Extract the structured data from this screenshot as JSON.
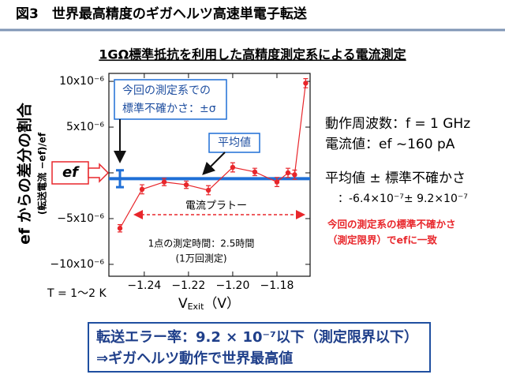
{
  "slide": {
    "header": "図3　世界最高精度のギガヘルツ高速単電子転送",
    "info_frequency": "動作周波数：f = 1 GHz",
    "info_current": "電流値：ef ~160 pA",
    "stats_heading": "平均値 ± 標準不確かさ",
    "note_line1": "今回の測定系の標準不確かさ",
    "note_line2": "（測定限界）でefに一致",
    "conclusion_line1": "転送エラー率：9.2 × 10⁻⁷以下（測定限界以下）",
    "conclusion_line2": "⇒ギガヘルツ動作で世界最高値"
  },
  "chart_data": {
    "type": "line",
    "title": "1GΩ標準抵抗を利用した高精度測定系による電流測定",
    "y_label": "ef からの差分の割合",
    "y_label_sub": "(転送電流 −ef)/ef",
    "x_label": "V",
    "x_label_subscript": "Exit",
    "x_label_unit": "（V）",
    "x": [
      -1.251,
      -1.241,
      -1.231,
      -1.221,
      -1.211,
      -1.2,
      -1.19,
      -1.18,
      -1.175,
      -1.172,
      -1.167
    ],
    "series": [
      {
        "name": "転送電流",
        "color": "#e8262b",
        "values": [
          -6.06e-06,
          -1.8e-06,
          -1e-06,
          -1.3e-06,
          -1.9e-06,
          6e-07,
          1e-07,
          -1e-06,
          0,
          -2e-07,
          9.8e-06
        ],
        "errors": [
          4e-07,
          5e-07,
          4e-07,
          4e-07,
          5e-07,
          5e-07,
          4e-07,
          5e-07,
          5e-07,
          5e-07,
          5e-07
        ]
      }
    ],
    "xlim": [
      -1.256,
      -1.165
    ],
    "xticks": [
      {
        "value": -1.24,
        "label": "−1.24"
      },
      {
        "value": -1.22,
        "label": "−1.22"
      },
      {
        "value": -1.2,
        "label": "−1.20"
      },
      {
        "value": -1.18,
        "label": "−1.18"
      }
    ],
    "ylim": [
      -1.13e-05,
      1.087e-05
    ],
    "yticks": [
      {
        "value": 1e-05,
        "label": "10x10⁻⁶"
      },
      {
        "value": 5e-06,
        "label": "5x10⁻⁶"
      },
      0,
      {
        "value": -5e-06,
        "label": "−5x10⁻⁶"
      },
      {
        "value": -1e-05,
        "label": "−10x10⁻⁶"
      }
    ],
    "mean": -6.4e-07,
    "mean_color": "#1f6fd6",
    "uncertainty": 9.2e-07,
    "stats_prefix": "：",
    "mean_label": "-6.4×10⁻⁷",
    "stats_pm": "± ",
    "uncertainty_label": "9.2×10⁻⁷",
    "annotations": {
      "uncertainty_box_line1": "今回の測定系での",
      "uncertainty_box_line2": "標準不確かさ：±σ",
      "mean_box": "平均値",
      "ef_box": "ef",
      "plateau": "電流プラトー",
      "time_line1": "1点の測定時間：2.5時間",
      "time_line2": "(1万回測定)",
      "temperature": "T = 1～2 K"
    }
  }
}
